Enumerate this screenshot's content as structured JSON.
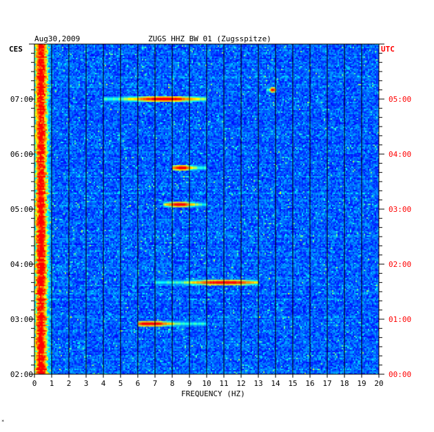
{
  "header": {
    "date": "Aug30,2009",
    "station": "ZUGS HHZ BW 01 (Zugsspitze)"
  },
  "left_zone_label": "CES",
  "right_zone_label": "UTC",
  "chart_data": {
    "type": "heatmap",
    "title": "ZUGS HHZ BW 01 (Zugsspitze)",
    "date": "Aug30,2009",
    "xlabel": "FREQUENCY (HZ)",
    "xlim": [
      0,
      20
    ],
    "x_ticks": [
      "0",
      "1",
      "2",
      "3",
      "4",
      "5",
      "6",
      "7",
      "8",
      "9",
      "10",
      "11",
      "12",
      "13",
      "14",
      "15",
      "16",
      "17",
      "18",
      "19",
      "20"
    ],
    "y_left_label": "CES",
    "y_left_ticks": [
      "02:00",
      "03:00",
      "04:00",
      "05:00",
      "06:00",
      "07:00"
    ],
    "y_right_label": "UTC",
    "y_right_ticks": [
      "00:00",
      "01:00",
      "02:00",
      "03:00",
      "04:00",
      "05:00"
    ],
    "time_range_ces": [
      "02:00",
      "08:00"
    ],
    "grid": true,
    "colormap": [
      "#0000a0",
      "#0000ff",
      "#0080ff",
      "#00ffff",
      "#ffff00",
      "#ff8000",
      "#ff0000"
    ],
    "features": [
      {
        "time_ces": "07:00",
        "freq_range": [
          4,
          10
        ],
        "peak_freq": 7.5
      },
      {
        "time_ces": "05:45",
        "freq_range": [
          8,
          10
        ],
        "peak_freq": 8.5
      },
      {
        "time_ces": "05:05",
        "freq_range": [
          7.5,
          10
        ],
        "peak_freq": 8.4
      },
      {
        "time_ces": "03:40",
        "freq_range": [
          7,
          13
        ],
        "peak_freq": 11
      },
      {
        "time_ces": "02:55",
        "freq_range": [
          6,
          10
        ],
        "peak_freq": 6.7
      },
      {
        "time_ces": "07:10",
        "freq_range": [
          13.5,
          14
        ],
        "peak_freq": 13.8
      }
    ]
  },
  "colors": {
    "left_labels": "#000000",
    "right_labels": "#ff0000",
    "grid": "#000000"
  },
  "footer_mark": "*"
}
